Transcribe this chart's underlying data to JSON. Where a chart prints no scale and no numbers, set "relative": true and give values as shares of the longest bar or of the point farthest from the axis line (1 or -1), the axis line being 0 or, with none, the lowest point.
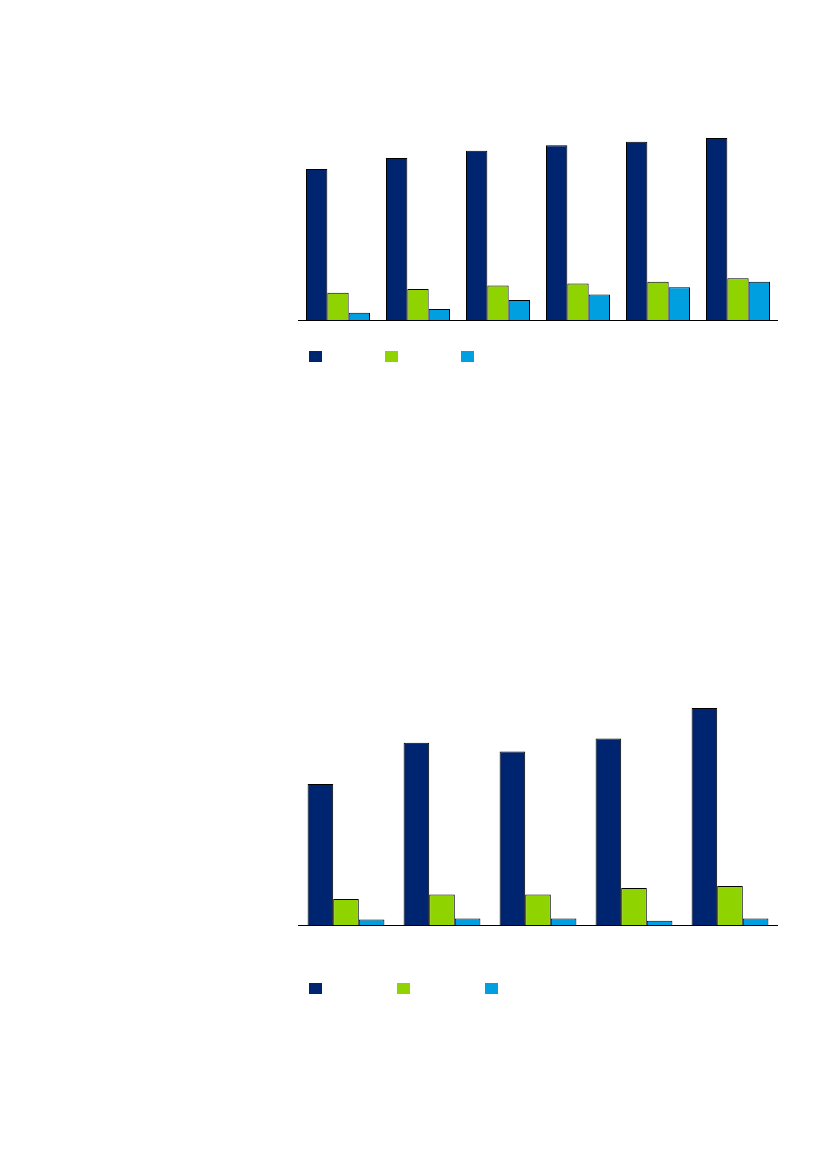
{
  "chart_data": [
    {
      "type": "bar",
      "relative": true,
      "categories": [
        null,
        null,
        null,
        null,
        null,
        null
      ],
      "series": [
        {
          "color": "#002570",
          "values": [
            0.83,
            0.89,
            0.93,
            0.96,
            0.98,
            1
          ]
        },
        {
          "color": "#8fd400",
          "values": [
            0.15,
            0.17,
            0.19,
            0.2,
            0.21,
            0.23
          ]
        },
        {
          "color": "#009fdf",
          "values": [
            0.04,
            0.06,
            0.11,
            0.14,
            0.18,
            0.21
          ]
        }
      ]
    },
    {
      "type": "bar",
      "relative": true,
      "categories": [
        null,
        null,
        null,
        null,
        null
      ],
      "series": [
        {
          "color": "#002570",
          "values": [
            0.65,
            0.84,
            0.8,
            0.86,
            1
          ]
        },
        {
          "color": "#8fd400",
          "values": [
            0.12,
            0.14,
            0.14,
            0.17,
            0.18
          ]
        },
        {
          "color": "#009fdf",
          "values": [
            0.025,
            0.03,
            0.03,
            0.02,
            0.03
          ]
        }
      ]
    }
  ]
}
